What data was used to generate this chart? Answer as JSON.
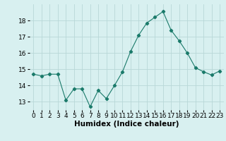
{
  "x": [
    0,
    1,
    2,
    3,
    4,
    5,
    6,
    7,
    8,
    9,
    10,
    11,
    12,
    13,
    14,
    15,
    16,
    17,
    18,
    19,
    20,
    21,
    22,
    23
  ],
  "y": [
    14.7,
    14.6,
    14.7,
    14.7,
    13.1,
    13.8,
    13.8,
    12.7,
    13.7,
    13.2,
    14.0,
    14.85,
    16.1,
    17.1,
    17.85,
    18.2,
    18.55,
    17.4,
    16.75,
    16.0,
    15.1,
    14.85,
    14.65,
    14.9
  ],
  "line_color": "#1a7a6a",
  "marker": "D",
  "marker_size": 2.2,
  "bg_color": "#d8f0f0",
  "grid_color": "#b8d8d8",
  "xlabel": "Humidex (Indice chaleur)",
  "xlabel_fontsize": 7.5,
  "tick_fontsize": 6.5,
  "ylim": [
    12.5,
    19.0
  ],
  "yticks": [
    13,
    14,
    15,
    16,
    17,
    18
  ],
  "xlim": [
    -0.5,
    23.5
  ],
  "xticks": [
    0,
    1,
    2,
    3,
    4,
    5,
    6,
    7,
    8,
    9,
    10,
    11,
    12,
    13,
    14,
    15,
    16,
    17,
    18,
    19,
    20,
    21,
    22,
    23
  ]
}
